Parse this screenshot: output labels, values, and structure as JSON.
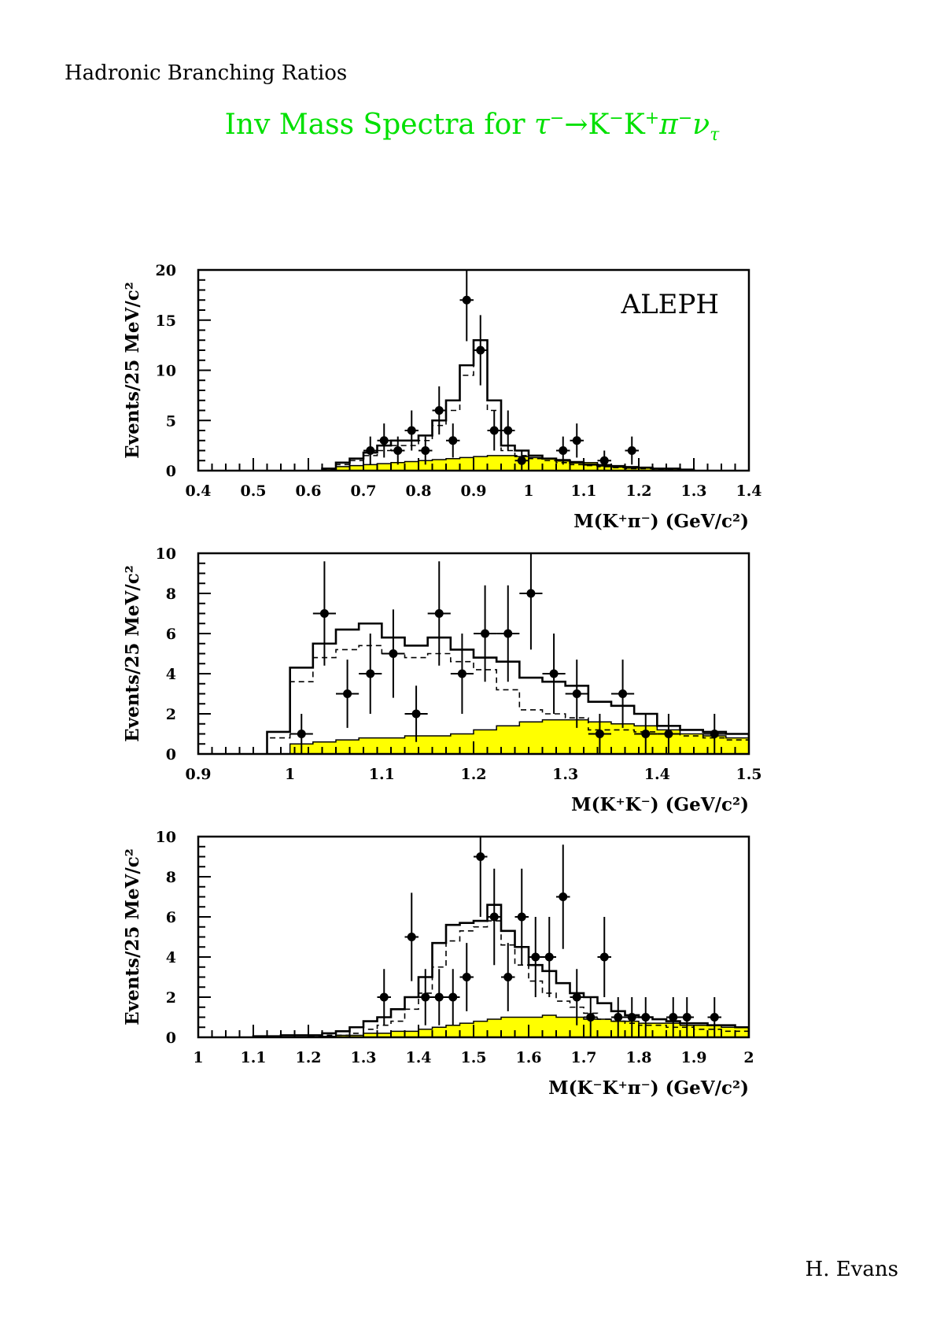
{
  "header": {
    "left_text": "Hadronic Branching Ratios"
  },
  "main_title": {
    "text_prefix": "Inv Mass Spectra for ",
    "tau": "τ",
    "minus": "−",
    "arrow": "→K",
    "k_minus": "−",
    "k2": "K",
    "plus": "+",
    "pi": "π",
    "pi_minus": "−",
    "nu": "ν",
    "nu_sub": "τ"
  },
  "footer": {
    "author": "H. Evans"
  },
  "colors": {
    "title": "#00e000",
    "background_fill": "#ffff00",
    "axis": "#000000"
  },
  "chart_data": [
    {
      "type": "histogram",
      "experiment_label": "ALEPH",
      "ylabel": "Events/25 MeV/c²",
      "xlabel": "M(K⁺π⁻) (GeV/c²)",
      "xlim": [
        0.4,
        1.4
      ],
      "ylim": [
        0,
        20
      ],
      "bin_width": 0.025,
      "xticks": [
        "0.4",
        "0.5",
        "0.6",
        "0.7",
        "0.8",
        "0.9",
        "1",
        "1.1",
        "1.2",
        "1.3",
        "1.4"
      ],
      "xtick_values": [
        0.4,
        0.5,
        0.6,
        0.7,
        0.8,
        0.9,
        1.0,
        1.1,
        1.2,
        1.3,
        1.4
      ],
      "yticks": [
        "0",
        "5",
        "10",
        "15",
        "20"
      ],
      "ytick_values": [
        0,
        5,
        10,
        15,
        20
      ],
      "solid_hist": {
        "x0": 0.625,
        "values": [
          0.2,
          0.8,
          1.2,
          1.8,
          2.5,
          3.0,
          3.0,
          3.5,
          5.0,
          7.0,
          10.5,
          13.0,
          7.0,
          2.5,
          2.0,
          1.5,
          1.2,
          1.0,
          0.8,
          0.6,
          0.5,
          0.4,
          0.3,
          0.3,
          0.2,
          0.2,
          0.1
        ]
      },
      "dashed_hist": {
        "x0": 0.625,
        "values": [
          0.1,
          0.6,
          1.0,
          1.5,
          2.0,
          2.5,
          2.5,
          3.0,
          4.5,
          6.0,
          9.5,
          12.0,
          6.0,
          2.0,
          1.5,
          1.2,
          1.0,
          0.8,
          0.6,
          0.5,
          0.4,
          0.3,
          0.2,
          0.2,
          0.1,
          0.1,
          0.1
        ]
      },
      "background_hist": {
        "x0": 0.625,
        "values": [
          0.2,
          0.4,
          0.5,
          0.6,
          0.7,
          0.8,
          0.9,
          1.0,
          1.1,
          1.2,
          1.3,
          1.4,
          1.5,
          1.5,
          1.4,
          1.3,
          1.2,
          1.1,
          0.9,
          0.8,
          0.6,
          0.5,
          0.4,
          0.3,
          0.2,
          0.2,
          0.1
        ]
      },
      "points": [
        {
          "x": 0.7125,
          "y": 2,
          "yerr": 1.4
        },
        {
          "x": 0.7375,
          "y": 3,
          "yerr": 1.7
        },
        {
          "x": 0.7625,
          "y": 2,
          "yerr": 1.4
        },
        {
          "x": 0.7875,
          "y": 4,
          "yerr": 2.0
        },
        {
          "x": 0.8125,
          "y": 2,
          "yerr": 1.4
        },
        {
          "x": 0.8375,
          "y": 6,
          "yerr": 2.4
        },
        {
          "x": 0.8625,
          "y": 3,
          "yerr": 1.7
        },
        {
          "x": 0.8875,
          "y": 17,
          "yerr": 4.1
        },
        {
          "x": 0.9125,
          "y": 12,
          "yerr": 3.5
        },
        {
          "x": 0.9375,
          "y": 4,
          "yerr": 2.0
        },
        {
          "x": 0.9625,
          "y": 4,
          "yerr": 2.0
        },
        {
          "x": 0.9875,
          "y": 1,
          "yerr": 1.0
        },
        {
          "x": 1.0625,
          "y": 2,
          "yerr": 1.4
        },
        {
          "x": 1.0875,
          "y": 3,
          "yerr": 1.7
        },
        {
          "x": 1.1375,
          "y": 1,
          "yerr": 1.0
        },
        {
          "x": 1.1875,
          "y": 2,
          "yerr": 1.4
        }
      ]
    },
    {
      "type": "histogram",
      "ylabel": "Events/25 MeV/c²",
      "xlabel": "M(K⁺K⁻) (GeV/c²)",
      "xlim": [
        0.9,
        1.5
      ],
      "ylim": [
        0,
        10
      ],
      "bin_width": 0.025,
      "xticks": [
        "0.9",
        "1",
        "1.1",
        "1.2",
        "1.3",
        "1.4",
        "1.5"
      ],
      "xtick_values": [
        0.9,
        1.0,
        1.1,
        1.2,
        1.3,
        1.4,
        1.5
      ],
      "yticks": [
        "0",
        "2",
        "4",
        "6",
        "8",
        "10"
      ],
      "ytick_values": [
        0,
        2,
        4,
        6,
        8,
        10
      ],
      "solid_hist": {
        "x0": 0.975,
        "values": [
          1.1,
          4.3,
          5.5,
          6.2,
          6.5,
          5.8,
          5.4,
          5.8,
          5.2,
          4.8,
          4.6,
          3.8,
          3.6,
          3.4,
          2.6,
          2.4,
          2.0,
          1.4,
          1.2,
          1.1,
          1.0,
          0.9,
          0.8,
          0.7
        ]
      },
      "dashed_hist": {
        "x0": 0.975,
        "values": [
          0.8,
          3.6,
          4.8,
          5.2,
          5.4,
          5.0,
          4.8,
          5.0,
          4.6,
          4.2,
          3.2,
          2.2,
          2.0,
          1.8,
          1.2,
          1.2,
          1.1,
          1.0,
          0.9,
          0.8,
          0.7,
          0.6,
          0.5,
          0.4
        ]
      },
      "background_hist": {
        "x0": 0.975,
        "values": [
          0.0,
          0.5,
          0.6,
          0.7,
          0.8,
          0.8,
          0.9,
          0.9,
          1.0,
          1.2,
          1.4,
          1.6,
          1.7,
          1.7,
          1.6,
          1.5,
          1.4,
          1.2,
          1.0,
          0.9,
          0.8,
          0.7,
          0.6,
          0.5
        ]
      },
      "points": [
        {
          "x": 1.0125,
          "y": 1,
          "yerr": 1.0
        },
        {
          "x": 1.0375,
          "y": 7,
          "yerr": 2.6
        },
        {
          "x": 1.0625,
          "y": 3,
          "yerr": 1.7
        },
        {
          "x": 1.0875,
          "y": 4,
          "yerr": 2.0
        },
        {
          "x": 1.1125,
          "y": 5,
          "yerr": 2.2
        },
        {
          "x": 1.1375,
          "y": 2,
          "yerr": 1.4
        },
        {
          "x": 1.1625,
          "y": 7,
          "yerr": 2.6
        },
        {
          "x": 1.1875,
          "y": 4,
          "yerr": 2.0
        },
        {
          "x": 1.2125,
          "y": 6,
          "yerr": 2.4
        },
        {
          "x": 1.2375,
          "y": 6,
          "yerr": 2.4
        },
        {
          "x": 1.2625,
          "y": 8,
          "yerr": 2.8
        },
        {
          "x": 1.2875,
          "y": 4,
          "yerr": 2.0
        },
        {
          "x": 1.3125,
          "y": 3,
          "yerr": 1.7
        },
        {
          "x": 1.3375,
          "y": 1,
          "yerr": 1.0
        },
        {
          "x": 1.3625,
          "y": 3,
          "yerr": 1.7
        },
        {
          "x": 1.3875,
          "y": 1,
          "yerr": 1.0
        },
        {
          "x": 1.4125,
          "y": 1,
          "yerr": 1.0
        },
        {
          "x": 1.4625,
          "y": 1,
          "yerr": 1.0
        }
      ]
    },
    {
      "type": "histogram",
      "ylabel": "Events/25 MeV/c²",
      "xlabel": "M(K⁻K⁺π⁻) (GeV/c²)",
      "xlim": [
        1.0,
        2.0
      ],
      "ylim": [
        0,
        10
      ],
      "bin_width": 0.025,
      "xticks": [
        "1",
        "1.1",
        "1.2",
        "1.3",
        "1.4",
        "1.5",
        "1.6",
        "1.7",
        "1.8",
        "1.9",
        "2"
      ],
      "xtick_values": [
        1.0,
        1.1,
        1.2,
        1.3,
        1.4,
        1.5,
        1.6,
        1.7,
        1.8,
        1.9,
        2.0
      ],
      "yticks": [
        "0",
        "2",
        "4",
        "6",
        "8",
        "10"
      ],
      "ytick_values": [
        0,
        2,
        4,
        6,
        8,
        10
      ],
      "solid_hist": {
        "x0": 1.1,
        "values": [
          0.05,
          0.05,
          0.1,
          0.1,
          0.1,
          0.2,
          0.3,
          0.5,
          0.8,
          1.0,
          1.4,
          2.0,
          3.0,
          4.7,
          5.6,
          5.7,
          5.8,
          6.6,
          5.3,
          4.5,
          3.6,
          3.3,
          2.7,
          2.2,
          2.0,
          1.7,
          1.3,
          1.1,
          1.0,
          0.9,
          0.8,
          0.7,
          0.7,
          0.6,
          0.6,
          0.5
        ]
      },
      "dashed_hist": {
        "x0": 1.1,
        "values": [
          0.0,
          0.0,
          0.0,
          0.0,
          0.05,
          0.1,
          0.1,
          0.2,
          0.4,
          0.6,
          0.8,
          1.4,
          2.2,
          3.5,
          4.8,
          5.3,
          5.5,
          5.8,
          4.6,
          3.6,
          2.8,
          2.2,
          1.8,
          1.5,
          1.2,
          0.9,
          0.8,
          0.7,
          0.6,
          0.6,
          0.5,
          0.5,
          0.4,
          0.4,
          0.3,
          0.3
        ]
      },
      "background_hist": {
        "x0": 1.1,
        "values": [
          0.0,
          0.0,
          0.0,
          0.0,
          0.0,
          0.05,
          0.1,
          0.1,
          0.2,
          0.2,
          0.3,
          0.3,
          0.4,
          0.5,
          0.6,
          0.7,
          0.8,
          0.9,
          1.0,
          1.0,
          1.0,
          1.1,
          1.0,
          1.0,
          0.9,
          0.9,
          0.8,
          0.8,
          0.7,
          0.7,
          0.7,
          0.6,
          0.6,
          0.6,
          0.5,
          0.5
        ]
      },
      "points": [
        {
          "x": 1.3375,
          "y": 2,
          "yerr": 1.4
        },
        {
          "x": 1.3875,
          "y": 5,
          "yerr": 2.2
        },
        {
          "x": 1.4125,
          "y": 2,
          "yerr": 1.4
        },
        {
          "x": 1.4375,
          "y": 2,
          "yerr": 1.4
        },
        {
          "x": 1.4625,
          "y": 2,
          "yerr": 1.4
        },
        {
          "x": 1.4875,
          "y": 3,
          "yerr": 1.7
        },
        {
          "x": 1.5125,
          "y": 9,
          "yerr": 3.0
        },
        {
          "x": 1.5375,
          "y": 6,
          "yerr": 2.4
        },
        {
          "x": 1.5625,
          "y": 3,
          "yerr": 1.7
        },
        {
          "x": 1.5875,
          "y": 6,
          "yerr": 2.4
        },
        {
          "x": 1.6125,
          "y": 4,
          "yerr": 2.0
        },
        {
          "x": 1.6375,
          "y": 4,
          "yerr": 2.0
        },
        {
          "x": 1.6625,
          "y": 7,
          "yerr": 2.6
        },
        {
          "x": 1.6875,
          "y": 2,
          "yerr": 1.4
        },
        {
          "x": 1.7125,
          "y": 1,
          "yerr": 1.0
        },
        {
          "x": 1.7375,
          "y": 4,
          "yerr": 2.0
        },
        {
          "x": 1.7625,
          "y": 1,
          "yerr": 1.0
        },
        {
          "x": 1.7875,
          "y": 1,
          "yerr": 1.0
        },
        {
          "x": 1.8125,
          "y": 1,
          "yerr": 1.0
        },
        {
          "x": 1.8625,
          "y": 1,
          "yerr": 1.0
        },
        {
          "x": 1.8875,
          "y": 1,
          "yerr": 1.0
        },
        {
          "x": 1.9375,
          "y": 1,
          "yerr": 1.0
        }
      ]
    }
  ]
}
